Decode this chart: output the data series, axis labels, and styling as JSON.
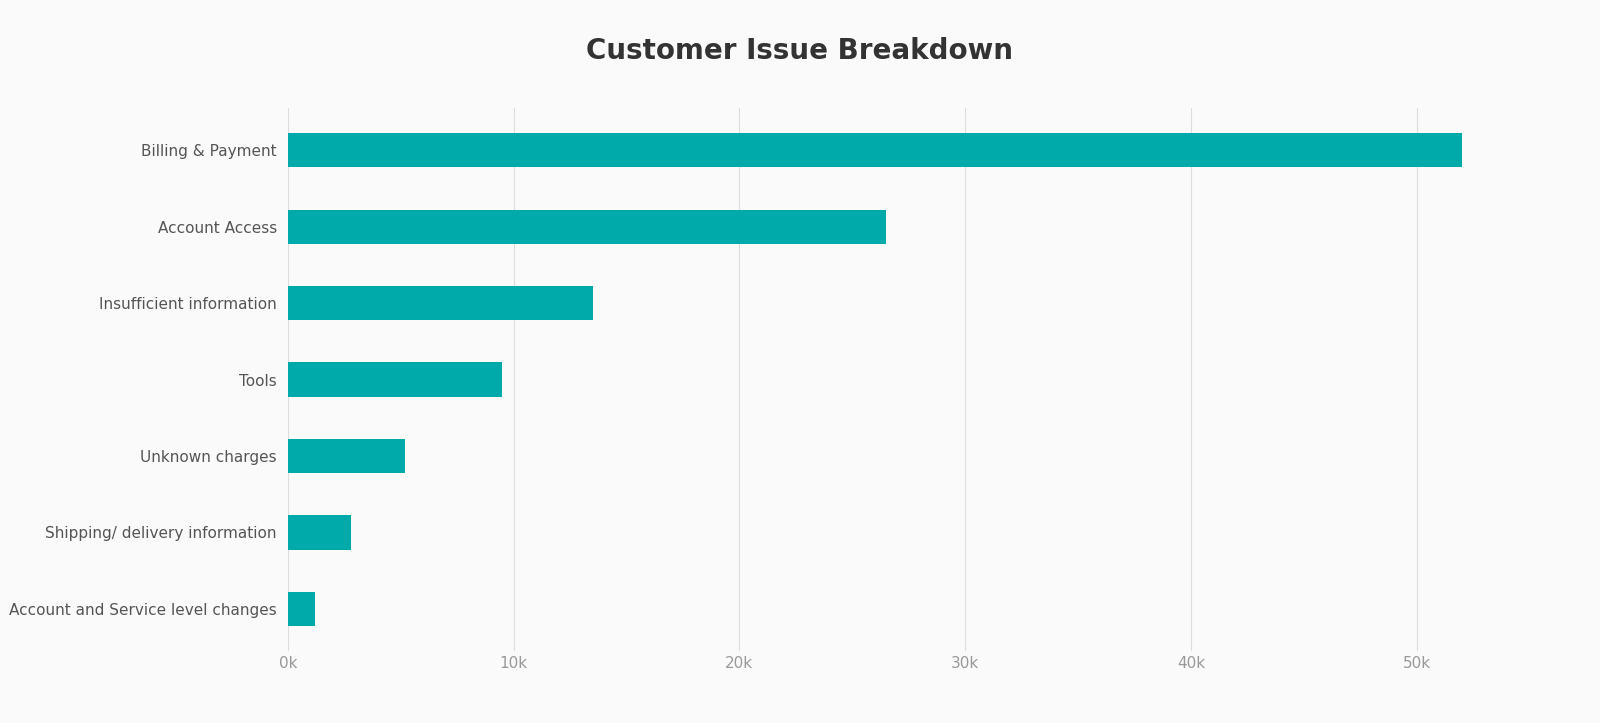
{
  "title": "Customer Issue Breakdown",
  "categories": [
    "Account and Service level changes",
    "Shipping/ delivery information",
    "Unknown charges",
    "Tools",
    "Insufficient information",
    "Account Access",
    "Billing & Payment"
  ],
  "values": [
    1200,
    2800,
    5200,
    9500,
    13500,
    26500,
    52000
  ],
  "bar_color": "#00AAAA",
  "background_color": "#FAFAFA",
  "title_fontsize": 20,
  "label_fontsize": 11,
  "tick_fontsize": 11,
  "xlim": [
    0,
    56000
  ],
  "xticks": [
    0,
    10000,
    20000,
    30000,
    40000,
    50000
  ],
  "xtick_labels": [
    "0k",
    "10k",
    "20k",
    "30k",
    "40k",
    "50k"
  ],
  "bar_height": 0.45,
  "title_color": "#333333",
  "label_color": "#555555",
  "tick_color": "#999999",
  "grid_color": "#DDDDDD"
}
